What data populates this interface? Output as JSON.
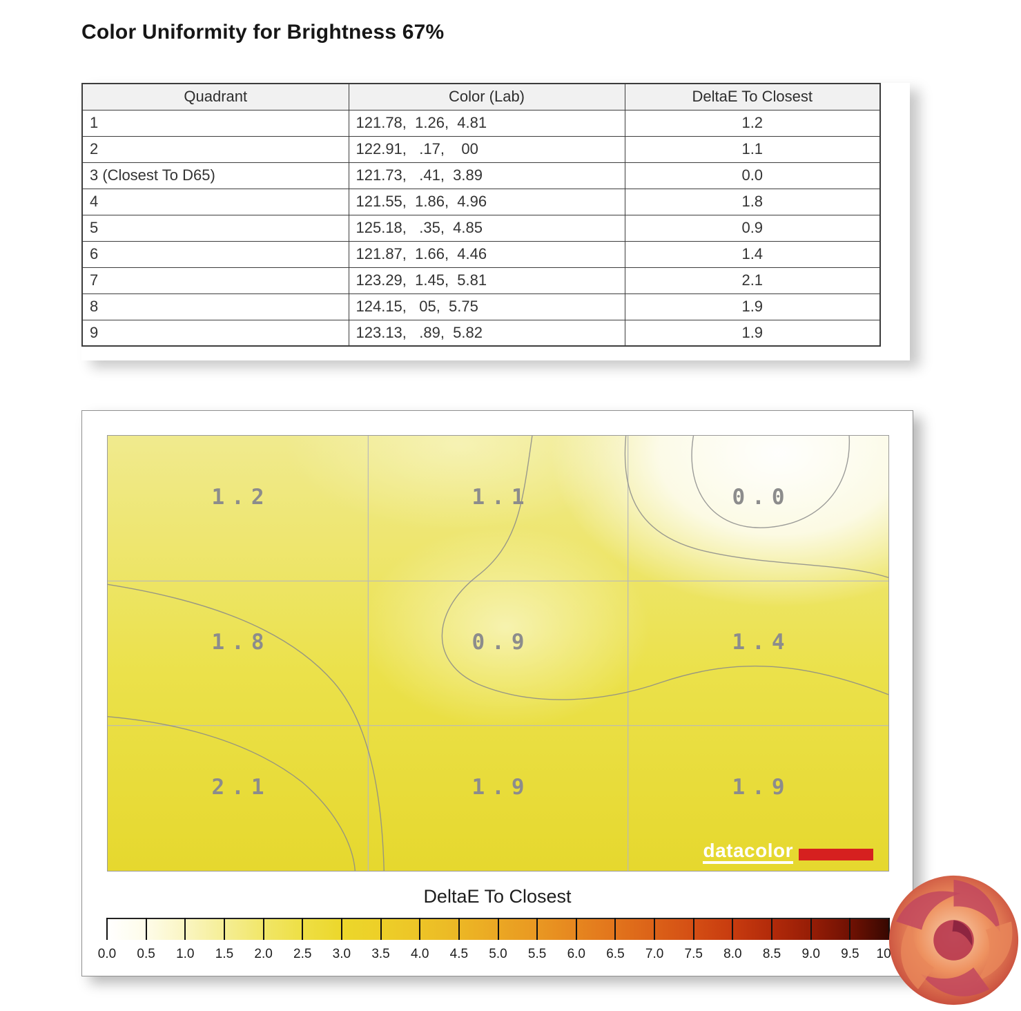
{
  "page": {
    "title": "Color Uniformity for Brightness 67%"
  },
  "table": {
    "headers": [
      "Quadrant",
      "Color (Lab)",
      "DeltaE To Closest"
    ],
    "rows": [
      {
        "quadrant": "1",
        "lab": "121.78,  1.26,  4.81",
        "delta": "1.2"
      },
      {
        "quadrant": "2",
        "lab": "122.91,   .17,    00",
        "delta": "1.1"
      },
      {
        "quadrant": "3 (Closest To D65)",
        "lab": "121.73,   .41,  3.89",
        "delta": "0.0"
      },
      {
        "quadrant": "4",
        "lab": "121.55,  1.86,  4.96",
        "delta": "1.8"
      },
      {
        "quadrant": "5",
        "lab": "125.18,   .35,  4.85",
        "delta": "0.9"
      },
      {
        "quadrant": "6",
        "lab": "121.87,  1.66,  4.46",
        "delta": "1.4"
      },
      {
        "quadrant": "7",
        "lab": "123.29,  1.45,  5.81",
        "delta": "2.1"
      },
      {
        "quadrant": "8",
        "lab": "124.15,   05,  5.75",
        "delta": "1.9"
      },
      {
        "quadrant": "9",
        "lab": "123.13,   .89,  5.82",
        "delta": "1.9"
      }
    ]
  },
  "chart_data": {
    "type": "heatmap",
    "title": "Color Uniformity for Brightness 67%",
    "grid": {
      "rows": 3,
      "cols": 3,
      "values": [
        [
          1.2,
          1.1,
          0.0
        ],
        [
          1.8,
          0.9,
          1.4
        ],
        [
          2.1,
          1.9,
          1.9
        ]
      ]
    },
    "cell_labels": [
      "1.2",
      "1.1",
      "0.0",
      "1.8",
      "0.9",
      "1.4",
      "2.1",
      "1.9",
      "1.9"
    ],
    "colorbar": {
      "label": "DeltaE To Closest",
      "min": 0.0,
      "max": 10.0,
      "step": 0.5,
      "tick_labels": [
        "0.0",
        "0.5",
        "1.0",
        "1.5",
        "2.0",
        "2.5",
        "3.0",
        "3.5",
        "4.0",
        "4.5",
        "5.0",
        "5.5",
        "6.0",
        "6.5",
        "7.0",
        "7.5",
        "8.0",
        "8.5",
        "9.0",
        "9.5",
        "10.0"
      ],
      "gradient_stops": [
        {
          "value": 0.0,
          "color": "#ffffff"
        },
        {
          "value": 1.0,
          "color": "#faf5c2"
        },
        {
          "value": 2.0,
          "color": "#f1e668"
        },
        {
          "value": 3.0,
          "color": "#ecd72b"
        },
        {
          "value": 4.0,
          "color": "#edc427"
        },
        {
          "value": 5.0,
          "color": "#eba723"
        },
        {
          "value": 6.0,
          "color": "#e6861f"
        },
        {
          "value": 7.0,
          "color": "#db6118"
        },
        {
          "value": 8.0,
          "color": "#c73b0f"
        },
        {
          "value": 9.0,
          "color": "#961d06"
        },
        {
          "value": 10.0,
          "color": "#370801"
        }
      ],
      "legend_position": "bottom"
    },
    "branding": {
      "logo_text": "datacolor",
      "logo_bar_color": "#d6201f"
    }
  }
}
